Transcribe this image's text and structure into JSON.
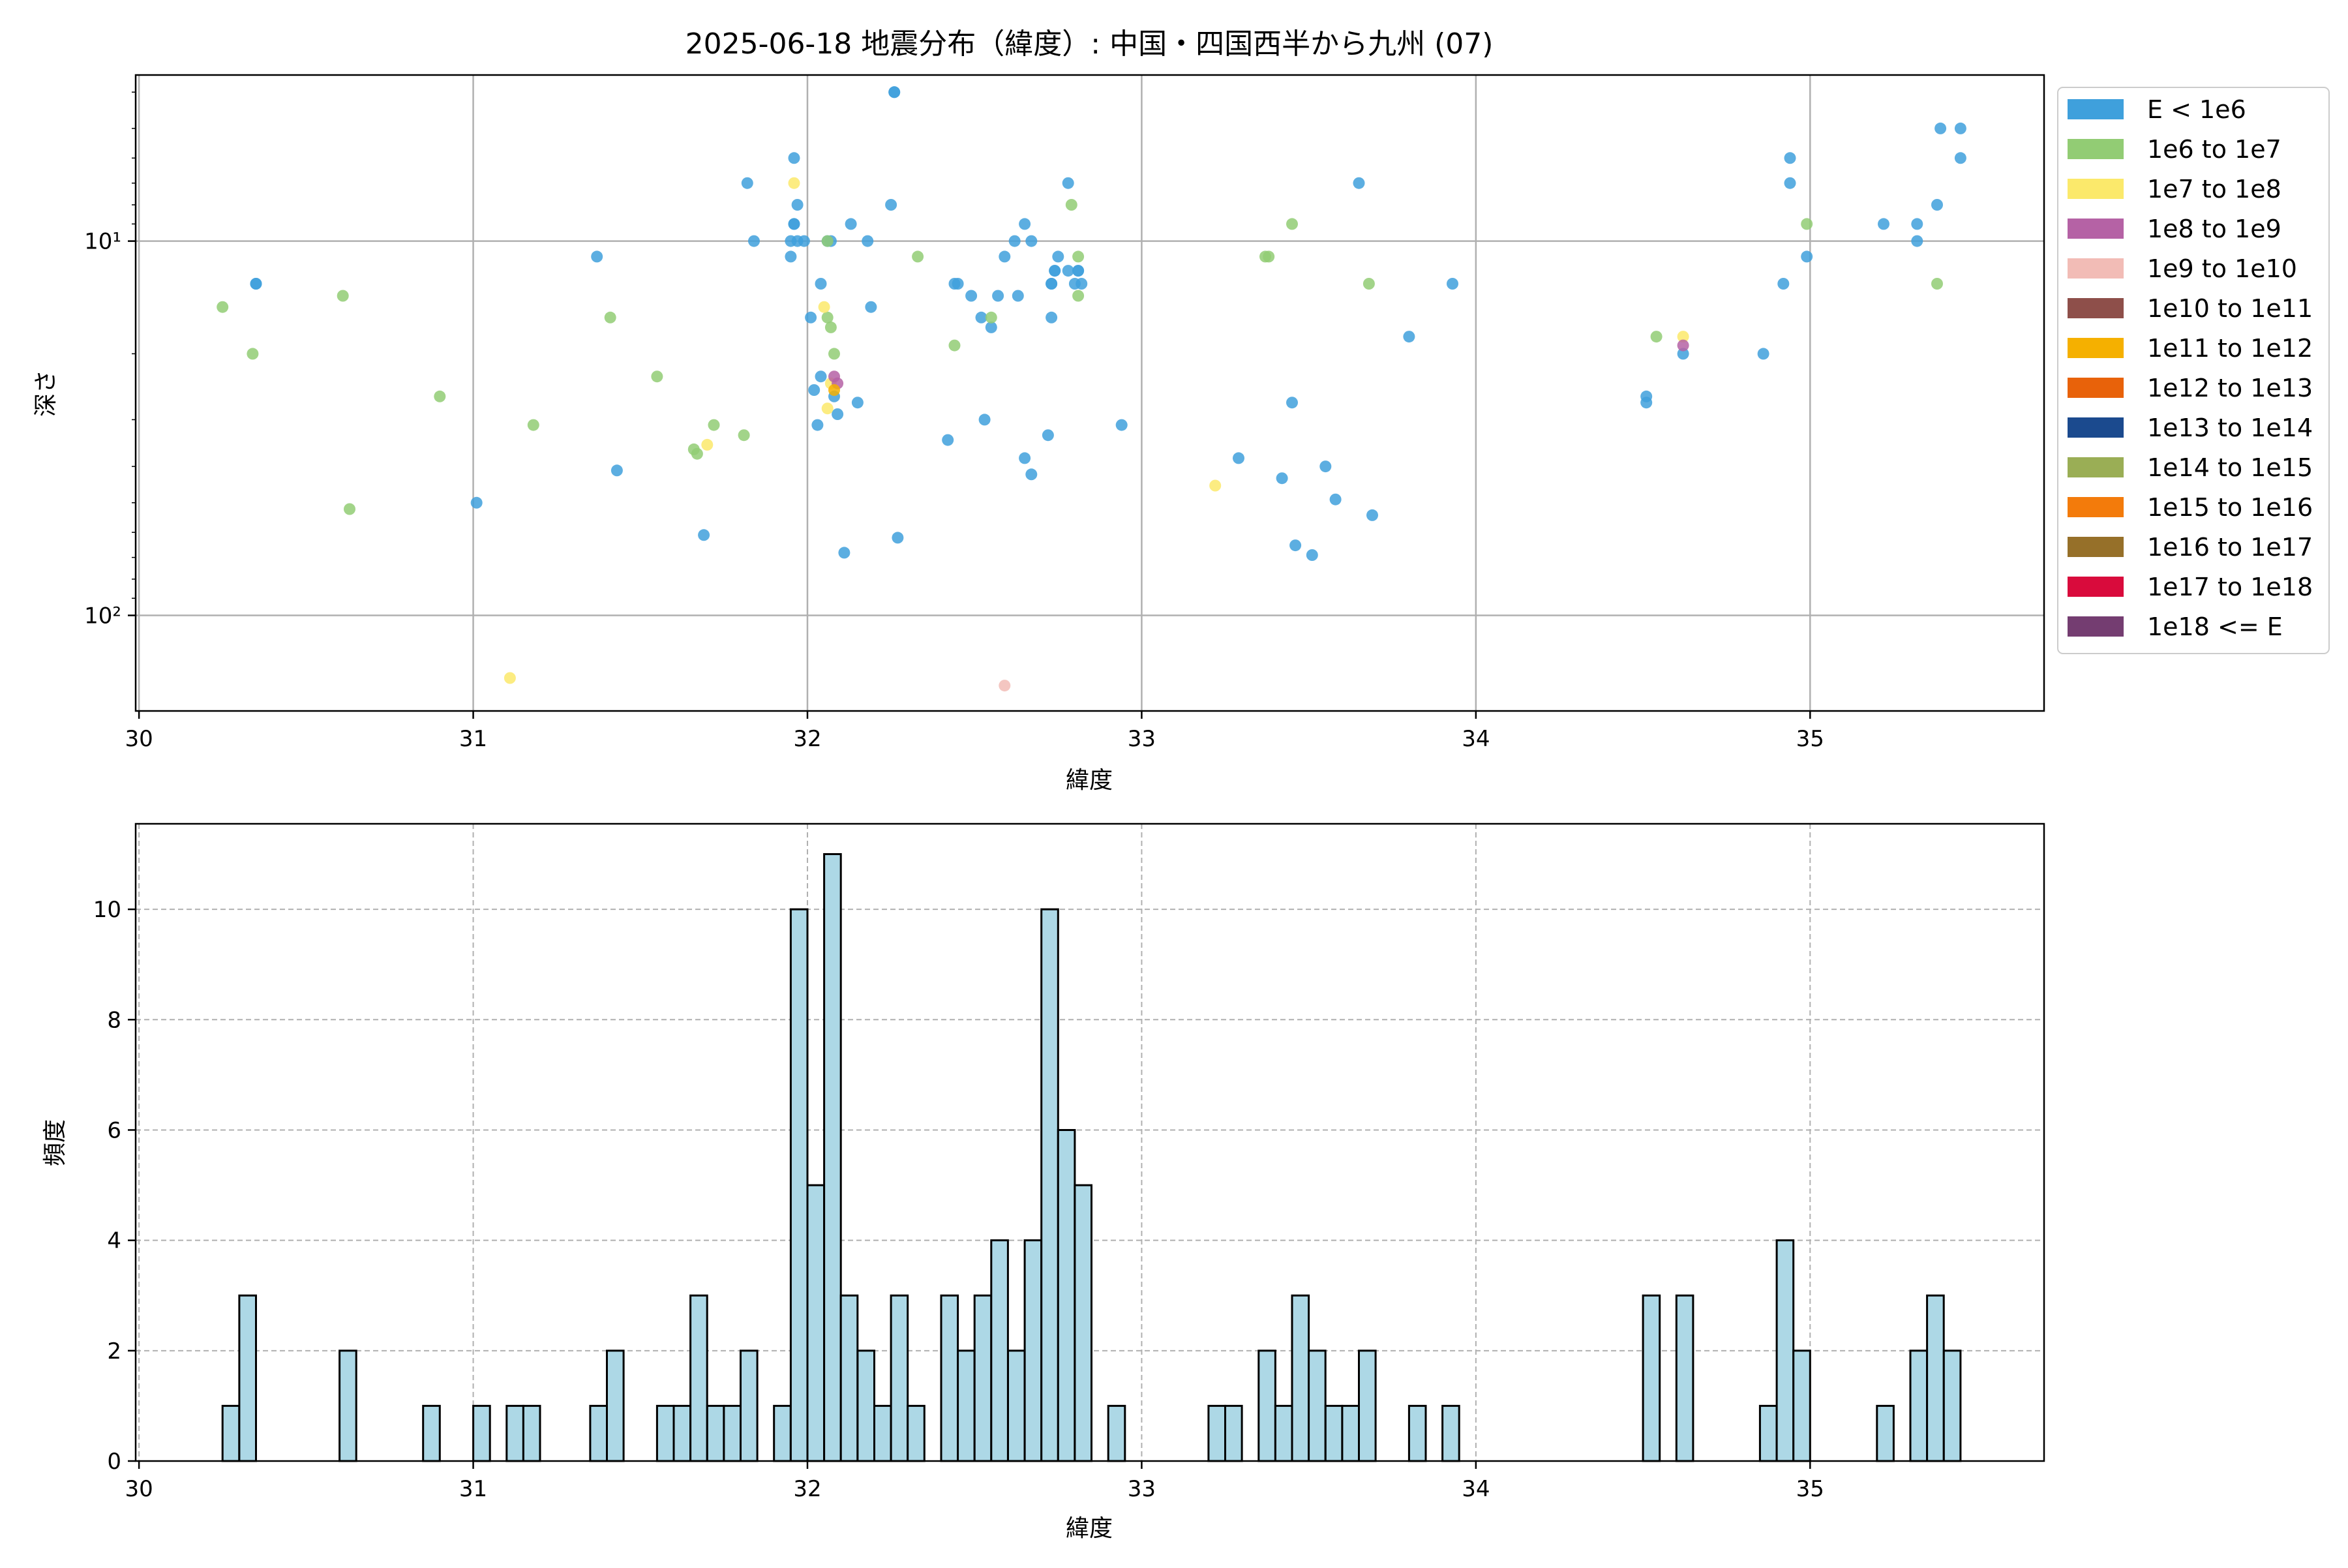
{
  "chart_data": [
    {
      "type": "scatter",
      "title": "2025-06-18 地震分布（緯度）: 中国・四国西半から九州 (07)",
      "xlabel": "緯度",
      "ylabel": "深さ",
      "xlim": [
        29.99,
        35.7
      ],
      "ylim": [
        180,
        3.6
      ],
      "yscale": "log",
      "y_inverted": true,
      "grid": true,
      "xticks": [
        30,
        31,
        32,
        33,
        34,
        35
      ],
      "yticks": [
        {
          "value": 10,
          "label": "10¹"
        },
        {
          "value": 100,
          "label": "10²"
        }
      ],
      "legend_position": "outside-right",
      "legend": [
        {
          "label": "E < 1e6",
          "color": "#3fa0dc"
        },
        {
          "label": "1e6 to 1e7",
          "color": "#92cc74"
        },
        {
          "label": "1e7 to 1e8",
          "color": "#fbe96b"
        },
        {
          "label": "1e8 to 1e9",
          "color": "#b562a5"
        },
        {
          "label": "1e9 to 1e10",
          "color": "#f2bcb6"
        },
        {
          "label": "1e10 to 1e11",
          "color": "#8e4f4a"
        },
        {
          "label": "1e11 to 1e12",
          "color": "#f5b000"
        },
        {
          "label": "1e12 to 1e13",
          "color": "#e8620a"
        },
        {
          "label": "1e13 to 1e14",
          "color": "#1b4a8e"
        },
        {
          "label": "1e14 to 1e15",
          "color": "#9aae55"
        },
        {
          "label": "1e15 to 1e16",
          "color": "#f37b0b"
        },
        {
          "label": "1e16 to 1e17",
          "color": "#967029"
        },
        {
          "label": "1e17 to 1e18",
          "color": "#d90b3c"
        },
        {
          "label": "1e18 <= E",
          "color": "#743d71"
        }
      ],
      "series": [
        {
          "name": "E < 1e6",
          "color": "#3fa0dc",
          "points": [
            [
              30.35,
              13
            ],
            [
              30.35,
              13
            ],
            [
              31.01,
              50
            ],
            [
              31.37,
              11
            ],
            [
              31.43,
              41
            ],
            [
              31.69,
              61
            ],
            [
              31.82,
              7
            ],
            [
              31.84,
              10
            ],
            [
              31.95,
              10
            ],
            [
              31.95,
              11
            ],
            [
              31.96,
              6
            ],
            [
              31.96,
              9
            ],
            [
              31.96,
              9
            ],
            [
              31.97,
              8
            ],
            [
              31.97,
              10
            ],
            [
              31.99,
              10
            ],
            [
              32.01,
              16
            ],
            [
              32.02,
              25
            ],
            [
              32.03,
              31
            ],
            [
              32.04,
              13
            ],
            [
              32.04,
              23
            ],
            [
              32.06,
              10
            ],
            [
              32.07,
              10
            ],
            [
              32.08,
              26
            ],
            [
              32.09,
              29
            ],
            [
              32.11,
              68
            ],
            [
              32.13,
              9
            ],
            [
              32.15,
              27
            ],
            [
              32.18,
              10
            ],
            [
              32.19,
              15
            ],
            [
              32.25,
              8
            ],
            [
              32.26,
              4
            ],
            [
              32.26,
              4
            ],
            [
              32.27,
              62
            ],
            [
              32.42,
              34
            ],
            [
              32.44,
              13
            ],
            [
              32.45,
              13
            ],
            [
              32.49,
              14
            ],
            [
              32.52,
              16
            ],
            [
              32.53,
              30
            ],
            [
              32.55,
              17
            ],
            [
              32.57,
              14
            ],
            [
              32.59,
              11
            ],
            [
              32.62,
              10
            ],
            [
              32.63,
              14
            ],
            [
              32.65,
              38
            ],
            [
              32.65,
              9
            ],
            [
              32.67,
              42
            ],
            [
              32.67,
              10
            ],
            [
              32.72,
              33
            ],
            [
              32.73,
              16
            ],
            [
              32.73,
              13
            ],
            [
              32.73,
              13
            ],
            [
              32.74,
              12
            ],
            [
              32.74,
              12
            ],
            [
              32.75,
              11
            ],
            [
              32.78,
              7
            ],
            [
              32.78,
              12
            ],
            [
              32.8,
              13
            ],
            [
              32.81,
              12
            ],
            [
              32.81,
              12
            ],
            [
              32.82,
              13
            ],
            [
              32.94,
              31
            ],
            [
              33.29,
              38
            ],
            [
              33.42,
              43
            ],
            [
              33.45,
              27
            ],
            [
              33.46,
              65
            ],
            [
              33.51,
              69
            ],
            [
              33.55,
              40
            ],
            [
              33.58,
              49
            ],
            [
              33.65,
              7
            ],
            [
              33.69,
              54
            ],
            [
              33.8,
              18
            ],
            [
              33.93,
              13
            ],
            [
              34.51,
              26
            ],
            [
              34.51,
              27
            ],
            [
              34.62,
              20
            ],
            [
              34.86,
              20
            ],
            [
              34.92,
              13
            ],
            [
              34.94,
              6
            ],
            [
              34.94,
              7
            ],
            [
              34.99,
              11
            ],
            [
              35.22,
              9
            ],
            [
              35.32,
              9
            ],
            [
              35.32,
              10
            ],
            [
              35.38,
              8
            ],
            [
              35.39,
              5
            ],
            [
              35.45,
              6
            ],
            [
              35.45,
              5
            ]
          ]
        },
        {
          "name": "1e6 to 1e7",
          "color": "#92cc74",
          "points": [
            [
              30.25,
              15
            ],
            [
              30.34,
              20
            ],
            [
              30.61,
              14
            ],
            [
              30.63,
              52
            ],
            [
              30.9,
              26
            ],
            [
              31.18,
              31
            ],
            [
              31.41,
              16
            ],
            [
              31.55,
              23
            ],
            [
              31.66,
              36
            ],
            [
              31.67,
              37
            ],
            [
              31.72,
              31
            ],
            [
              31.81,
              33
            ],
            [
              32.06,
              10
            ],
            [
              32.06,
              16
            ],
            [
              32.07,
              17
            ],
            [
              32.08,
              20
            ],
            [
              32.33,
              11
            ],
            [
              32.44,
              19
            ],
            [
              32.55,
              16
            ],
            [
              32.79,
              8
            ],
            [
              32.81,
              11
            ],
            [
              32.81,
              14
            ],
            [
              33.37,
              11
            ],
            [
              33.38,
              11
            ],
            [
              33.45,
              9
            ],
            [
              33.68,
              13
            ],
            [
              34.54,
              18
            ],
            [
              34.99,
              9
            ],
            [
              35.38,
              13
            ]
          ]
        },
        {
          "name": "1e7 to 1e8",
          "color": "#fbe96b",
          "points": [
            [
              31.11,
              147
            ],
            [
              31.7,
              35
            ],
            [
              31.96,
              7
            ],
            [
              32.05,
              15
            ],
            [
              32.06,
              28
            ],
            [
              32.07,
              24
            ],
            [
              33.22,
              45
            ],
            [
              34.62,
              18
            ]
          ]
        },
        {
          "name": "1e8 to 1e9",
          "color": "#b562a5",
          "points": [
            [
              32.08,
              23
            ],
            [
              32.09,
              24
            ],
            [
              34.62,
              19
            ]
          ]
        },
        {
          "name": "1e9 to 1e10",
          "color": "#f2bcb6",
          "points": [
            [
              32.59,
              154
            ]
          ]
        },
        {
          "name": "1e11 to 1e12",
          "color": "#f5b000",
          "points": [
            [
              32.08,
              25
            ]
          ]
        }
      ]
    },
    {
      "type": "bar",
      "xlabel": "緯度",
      "ylabel": "頻度",
      "xlim": [
        29.99,
        35.7
      ],
      "ylim": [
        0,
        11.55
      ],
      "grid": true,
      "xticks": [
        30,
        31,
        32,
        33,
        34,
        35
      ],
      "yticks": [
        0,
        2,
        4,
        6,
        8,
        10
      ],
      "bar_color": "#add8e6",
      "edge_color": "#000000",
      "bin_width": 0.05,
      "bins": [
        [
          30.25,
          1
        ],
        [
          30.3,
          3
        ],
        [
          30.6,
          2
        ],
        [
          30.85,
          1
        ],
        [
          31.0,
          1
        ],
        [
          31.1,
          1
        ],
        [
          31.15,
          1
        ],
        [
          31.35,
          1
        ],
        [
          31.4,
          2
        ],
        [
          31.55,
          1
        ],
        [
          31.6,
          1
        ],
        [
          31.65,
          3
        ],
        [
          31.7,
          1
        ],
        [
          31.75,
          1
        ],
        [
          31.8,
          2
        ],
        [
          31.9,
          1
        ],
        [
          31.95,
          10
        ],
        [
          32.0,
          5
        ],
        [
          32.05,
          11
        ],
        [
          32.1,
          3
        ],
        [
          32.15,
          2
        ],
        [
          32.2,
          1
        ],
        [
          32.25,
          3
        ],
        [
          32.3,
          1
        ],
        [
          32.4,
          3
        ],
        [
          32.45,
          2
        ],
        [
          32.5,
          3
        ],
        [
          32.55,
          4
        ],
        [
          32.6,
          2
        ],
        [
          32.65,
          4
        ],
        [
          32.7,
          10
        ],
        [
          32.75,
          6
        ],
        [
          32.8,
          5
        ],
        [
          32.9,
          1
        ],
        [
          33.2,
          1
        ],
        [
          33.25,
          1
        ],
        [
          33.35,
          2
        ],
        [
          33.4,
          1
        ],
        [
          33.45,
          3
        ],
        [
          33.5,
          2
        ],
        [
          33.55,
          1
        ],
        [
          33.6,
          1
        ],
        [
          33.65,
          2
        ],
        [
          33.8,
          1
        ],
        [
          33.9,
          1
        ],
        [
          34.5,
          3
        ],
        [
          34.6,
          3
        ],
        [
          34.85,
          1
        ],
        [
          34.9,
          4
        ],
        [
          34.95,
          2
        ],
        [
          35.2,
          1
        ],
        [
          35.3,
          2
        ],
        [
          35.35,
          3
        ],
        [
          35.4,
          2
        ]
      ]
    }
  ]
}
